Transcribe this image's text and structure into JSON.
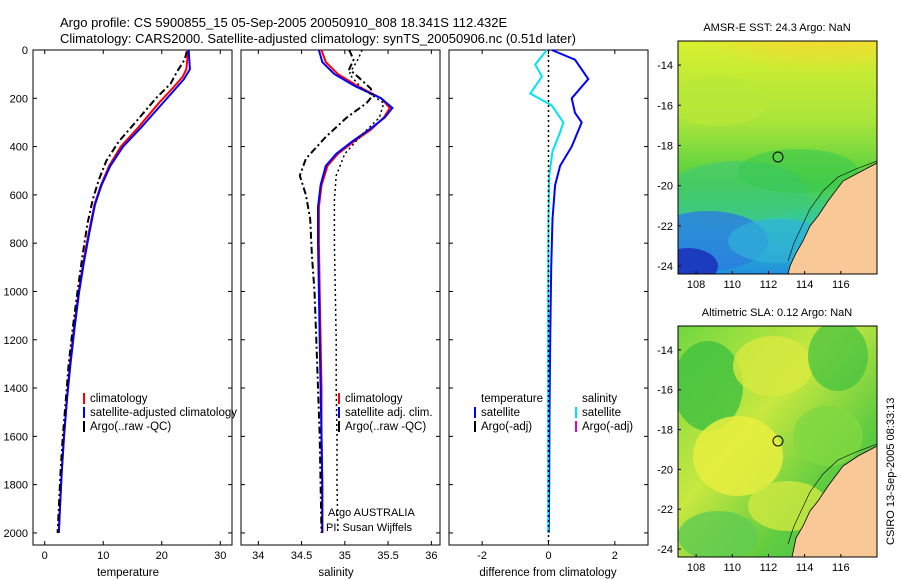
{
  "figure": {
    "title_line1": "Argo profile: CS 5900855_15 05-Sep-2005 20050910_808 18.341S 112.432E",
    "title_line2": "Climatology: CARS2000. Satellite-adjusted climatology: synTS_20050906.nc (0.51d later)",
    "side_label": "CSIRO 13-Sep-2005 08:33:13",
    "colors": {
      "climatology": "#ff0000",
      "satellite": "#0000ff",
      "argo": "#000000",
      "cyan": "#00e5ee",
      "magenta": "#dd00dd"
    }
  },
  "chart_data": [
    {
      "type": "line",
      "name": "temperature",
      "xlabel": "temperature",
      "ylabel": "",
      "xlim": [
        -2,
        32
      ],
      "ylim": [
        2050,
        0
      ],
      "ydir": "reverse",
      "xticks": [
        0,
        10,
        20,
        30
      ],
      "yticks": [
        0,
        200,
        400,
        600,
        800,
        1000,
        1200,
        1400,
        1600,
        1800,
        2000
      ],
      "legend": [
        "climatology",
        "satellite-adjusted climatology",
        "Argo(..raw -QC)"
      ],
      "legend_position": "lower-center",
      "series": [
        {
          "name": "climatology",
          "style": "solid",
          "color": "#ff0000",
          "points": [
            [
              24.5,
              0
            ],
            [
              24.4,
              30
            ],
            [
              24.2,
              80
            ],
            [
              23.6,
              110
            ],
            [
              21.8,
              160
            ],
            [
              19.5,
              220
            ],
            [
              16.0,
              320
            ],
            [
              13.0,
              400
            ],
            [
              11.0,
              480
            ],
            [
              9.6,
              560
            ],
            [
              8.5,
              640
            ],
            [
              7.5,
              760
            ],
            [
              6.6,
              880
            ],
            [
              5.8,
              1000
            ],
            [
              5.0,
              1150
            ],
            [
              4.3,
              1300
            ],
            [
              3.8,
              1450
            ],
            [
              3.3,
              1600
            ],
            [
              2.9,
              1750
            ],
            [
              2.6,
              1900
            ],
            [
              2.4,
              2000
            ]
          ]
        },
        {
          "name": "satellite-adjusted climatology",
          "style": "solid",
          "color": "#0000ff",
          "points": [
            [
              24.6,
              0
            ],
            [
              24.7,
              40
            ],
            [
              24.8,
              80
            ],
            [
              23.8,
              120
            ],
            [
              22.0,
              170
            ],
            [
              19.8,
              230
            ],
            [
              16.5,
              320
            ],
            [
              13.4,
              400
            ],
            [
              11.2,
              480
            ],
            [
              9.7,
              560
            ],
            [
              8.6,
              640
            ],
            [
              7.6,
              760
            ],
            [
              6.7,
              880
            ],
            [
              5.9,
              1000
            ],
            [
              5.1,
              1150
            ],
            [
              4.4,
              1300
            ],
            [
              3.8,
              1450
            ],
            [
              3.3,
              1600
            ],
            [
              2.9,
              1750
            ],
            [
              2.6,
              1900
            ],
            [
              2.4,
              2000
            ]
          ]
        },
        {
          "name": "Argo(..raw -QC)",
          "style": "dashdot",
          "color": "#000000",
          "points": [
            [
              24.3,
              5
            ],
            [
              23.9,
              40
            ],
            [
              22.6,
              90
            ],
            [
              21.5,
              140
            ],
            [
              19.0,
              200
            ],
            [
              15.5,
              300
            ],
            [
              12.6,
              380
            ],
            [
              10.5,
              460
            ],
            [
              9.2,
              540
            ],
            [
              8.2,
              620
            ],
            [
              7.3,
              720
            ],
            [
              6.4,
              860
            ],
            [
              5.6,
              1000
            ],
            [
              4.8,
              1150
            ],
            [
              4.1,
              1300
            ],
            [
              3.6,
              1450
            ],
            [
              3.1,
              1600
            ],
            [
              2.7,
              1750
            ],
            [
              2.4,
              1900
            ],
            [
              2.2,
              2000
            ]
          ]
        }
      ]
    },
    {
      "type": "line",
      "name": "salinity",
      "xlabel": "salinity",
      "xlim": [
        33.8,
        36.1
      ],
      "ylim": [
        2050,
        0
      ],
      "ydir": "reverse",
      "xticks": [
        34,
        34.5,
        35,
        35.5,
        36
      ],
      "legend": [
        "climatology",
        "satellite adj. clim.",
        "Argo(..raw -QC)"
      ],
      "legend_position": "lower-right",
      "annotations": [
        "Argo AUSTRALIA",
        "PI: Susan Wijffels"
      ],
      "series": [
        {
          "name": "climatology",
          "style": "solid",
          "color": "#ff0000",
          "points": [
            [
              34.73,
              0
            ],
            [
              34.78,
              50
            ],
            [
              34.92,
              100
            ],
            [
              35.15,
              150
            ],
            [
              35.42,
              200
            ],
            [
              35.52,
              240
            ],
            [
              35.45,
              280
            ],
            [
              35.3,
              330
            ],
            [
              35.1,
              380
            ],
            [
              34.92,
              430
            ],
            [
              34.8,
              480
            ],
            [
              34.73,
              560
            ],
            [
              34.7,
              650
            ],
            [
              34.7,
              800
            ],
            [
              34.71,
              1000
            ],
            [
              34.72,
              1200
            ],
            [
              34.73,
              1400
            ],
            [
              34.73,
              1600
            ],
            [
              34.74,
              1800
            ],
            [
              34.74,
              2000
            ]
          ]
        },
        {
          "name": "satellite adj. clim.",
          "style": "solid",
          "color": "#0000ff",
          "points": [
            [
              34.7,
              0
            ],
            [
              34.74,
              50
            ],
            [
              34.88,
              100
            ],
            [
              35.12,
              150
            ],
            [
              35.42,
              200
            ],
            [
              35.55,
              240
            ],
            [
              35.46,
              280
            ],
            [
              35.28,
              330
            ],
            [
              35.08,
              380
            ],
            [
              34.9,
              430
            ],
            [
              34.78,
              480
            ],
            [
              34.72,
              560
            ],
            [
              34.69,
              650
            ],
            [
              34.69,
              800
            ],
            [
              34.7,
              1000
            ],
            [
              34.71,
              1200
            ],
            [
              34.72,
              1400
            ],
            [
              34.73,
              1600
            ],
            [
              34.74,
              1800
            ],
            [
              34.74,
              2000
            ]
          ]
        },
        {
          "name": "Argo(..raw -QC)",
          "style": "dashdot",
          "color": "#000000",
          "points": [
            [
              35.05,
              0
            ],
            [
              35.1,
              40
            ],
            [
              35.05,
              80
            ],
            [
              35.15,
              110
            ],
            [
              35.3,
              160
            ],
            [
              35.32,
              190
            ],
            [
              35.25,
              220
            ],
            [
              35.02,
              280
            ],
            [
              34.78,
              360
            ],
            [
              34.55,
              450
            ],
            [
              34.48,
              520
            ],
            [
              34.55,
              600
            ],
            [
              34.6,
              700
            ],
            [
              34.62,
              850
            ],
            [
              34.65,
              1000
            ],
            [
              34.67,
              1200
            ],
            [
              34.69,
              1400
            ],
            [
              34.71,
              1600
            ],
            [
              34.72,
              1800
            ],
            [
              34.73,
              2000
            ]
          ]
        },
        {
          "name": "dotted",
          "style": "dotted",
          "color": "#000000",
          "points": [
            [
              35.2,
              0
            ],
            [
              35.15,
              40
            ],
            [
              35.05,
              100
            ],
            [
              35.2,
              160
            ],
            [
              35.45,
              220
            ],
            [
              35.4,
              280
            ],
            [
              35.2,
              350
            ],
            [
              35.0,
              430
            ],
            [
              34.9,
              520
            ],
            [
              34.88,
              620
            ],
            [
              34.88,
              800
            ],
            [
              34.89,
              1000
            ],
            [
              34.9,
              1200
            ],
            [
              34.9,
              1400
            ],
            [
              34.91,
              1600
            ],
            [
              34.91,
              1800
            ],
            [
              34.92,
              2000
            ]
          ]
        }
      ]
    },
    {
      "type": "line",
      "name": "difference",
      "xlabel": "difference from climatology",
      "xlim": [
        -3,
        3
      ],
      "ylim": [
        2050,
        0
      ],
      "ydir": "reverse",
      "xticks": [
        -2,
        0,
        2
      ],
      "legend": [
        "temperature",
        "satellite",
        "Argo(-adj)",
        "salinity",
        "satellite",
        "Argo(-adj)"
      ],
      "legend_position": "lower",
      "series": [
        {
          "name": "temperature satellite",
          "style": "solid",
          "color": "#0000ff",
          "points": [
            [
              0.1,
              0
            ],
            [
              0.8,
              40
            ],
            [
              1.2,
              120
            ],
            [
              0.7,
              200
            ],
            [
              0.8,
              260
            ],
            [
              1.0,
              300
            ],
            [
              0.7,
              400
            ],
            [
              0.35,
              480
            ],
            [
              0.2,
              560
            ],
            [
              0.12,
              700
            ],
            [
              0.08,
              900
            ],
            [
              0.05,
              1200
            ],
            [
              0.03,
              1500
            ],
            [
              0.02,
              1800
            ],
            [
              0.01,
              2000
            ]
          ]
        },
        {
          "name": "salinity satellite",
          "style": "solid",
          "color": "#00e5ee",
          "points": [
            [
              -0.05,
              0
            ],
            [
              -0.4,
              60
            ],
            [
              -0.2,
              110
            ],
            [
              -0.55,
              180
            ],
            [
              0.1,
              230
            ],
            [
              0.45,
              300
            ],
            [
              0.35,
              340
            ],
            [
              0.12,
              420
            ],
            [
              0.02,
              520
            ],
            [
              0.0,
              700
            ],
            [
              -0.01,
              1000
            ],
            [
              -0.01,
              2000
            ]
          ]
        },
        {
          "name": "zero",
          "style": "dotted",
          "color": "#000000",
          "points": [
            [
              0,
              0
            ],
            [
              0,
              2050
            ]
          ]
        }
      ]
    },
    {
      "type": "heatmap",
      "name": "sst-map",
      "title": "AMSR-E SST: 24.3 Argo: NaN",
      "xticks": [
        108,
        110,
        112,
        114,
        116
      ],
      "yticks": [
        -14,
        -16,
        -18,
        -20,
        -22,
        -24
      ],
      "xlim": [
        107,
        118
      ],
      "ylim": [
        -24.4,
        -12.8
      ],
      "marker": {
        "lon": 112.43,
        "lat": -18.34
      }
    },
    {
      "type": "heatmap",
      "name": "sla-map",
      "title": "Altimetric SLA: 0.12 Argo: NaN",
      "xticks": [
        108,
        110,
        112,
        114,
        116
      ],
      "yticks": [
        -14,
        -16,
        -18,
        -20,
        -22,
        -24
      ],
      "xlim": [
        107,
        118
      ],
      "ylim": [
        -24.4,
        -12.8
      ],
      "marker": {
        "lon": 112.43,
        "lat": -18.34
      }
    }
  ]
}
